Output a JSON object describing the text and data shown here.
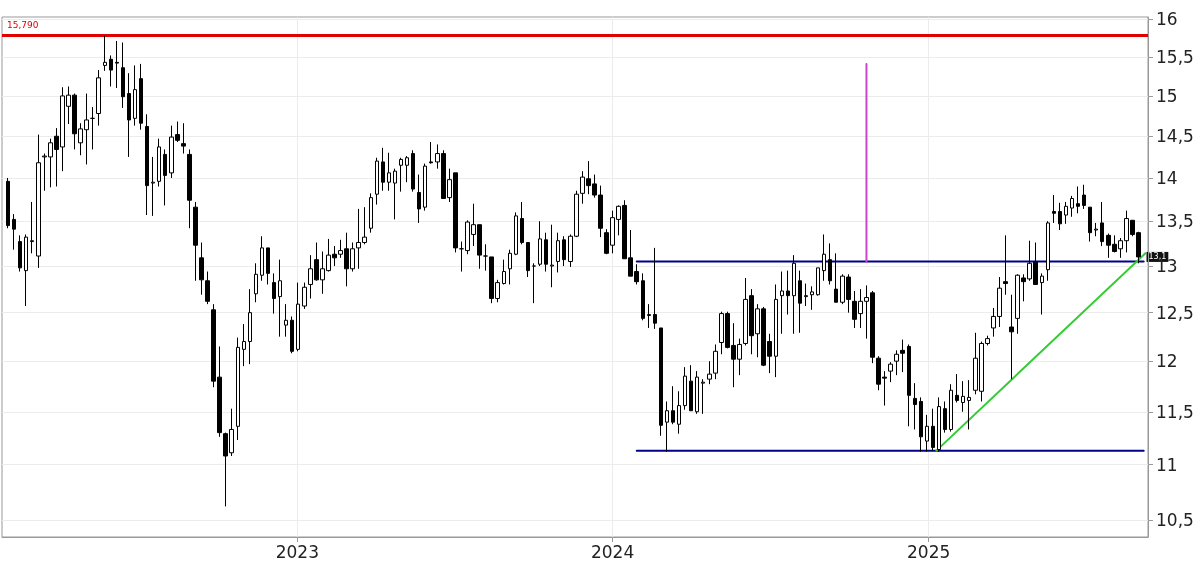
{
  "chart_data": {
    "type": "candlestick",
    "x": [
      "2022-01-31",
      "2022-02-07",
      "2022-02-14",
      "2022-02-21",
      "2022-02-28",
      "2022-03-07",
      "2022-03-14",
      "2022-03-21",
      "2022-03-28",
      "2022-04-04",
      "2022-04-11",
      "2022-04-18",
      "2022-04-25",
      "2022-05-02",
      "2022-05-09",
      "2022-05-16",
      "2022-05-23",
      "2022-05-30",
      "2022-06-06",
      "2022-06-13",
      "2022-06-20",
      "2022-06-27",
      "2022-07-04",
      "2022-07-11",
      "2022-07-18",
      "2022-07-25",
      "2022-08-01",
      "2022-08-08",
      "2022-08-15",
      "2022-08-22",
      "2022-08-29",
      "2022-09-05",
      "2022-09-12",
      "2022-09-19",
      "2022-09-26",
      "2022-10-03",
      "2022-10-10",
      "2022-10-17",
      "2022-10-24",
      "2022-10-31",
      "2022-11-07",
      "2022-11-14",
      "2022-11-21",
      "2022-11-28",
      "2022-12-05",
      "2022-12-12",
      "2022-12-19",
      "2022-12-26",
      "2023-01-02",
      "2023-01-09",
      "2023-01-16",
      "2023-01-23",
      "2023-01-30",
      "2023-02-06",
      "2023-02-13",
      "2023-02-20",
      "2023-02-27",
      "2023-03-06",
      "2023-03-13",
      "2023-03-20",
      "2023-03-27",
      "2023-04-03",
      "2023-04-10",
      "2023-04-17",
      "2023-04-24",
      "2023-05-01",
      "2023-05-08",
      "2023-05-15",
      "2023-05-22",
      "2023-05-29",
      "2023-06-05",
      "2023-06-12",
      "2023-06-19",
      "2023-06-26",
      "2023-07-03",
      "2023-07-10",
      "2023-07-17",
      "2023-07-24",
      "2023-07-31",
      "2023-08-07",
      "2023-08-14",
      "2023-08-21",
      "2023-08-28",
      "2023-09-04",
      "2023-09-11",
      "2023-09-18",
      "2023-09-25",
      "2023-10-02",
      "2023-10-09",
      "2023-10-16",
      "2023-10-23",
      "2023-10-30",
      "2023-11-06",
      "2023-11-13",
      "2023-11-20",
      "2023-11-27",
      "2023-12-04",
      "2023-12-11",
      "2023-12-18",
      "2023-12-25",
      "2024-01-01",
      "2024-01-08",
      "2024-01-15",
      "2024-01-22",
      "2024-01-29",
      "2024-02-05",
      "2024-02-12",
      "2024-02-19",
      "2024-02-26",
      "2024-03-04",
      "2024-03-11",
      "2024-03-18",
      "2024-03-25",
      "2024-04-01",
      "2024-04-08",
      "2024-04-15",
      "2024-04-22",
      "2024-04-29",
      "2024-05-06",
      "2024-05-13",
      "2024-05-20",
      "2024-05-27",
      "2024-06-03",
      "2024-06-10",
      "2024-06-17",
      "2024-06-24",
      "2024-07-01",
      "2024-07-08",
      "2024-07-15",
      "2024-07-22",
      "2024-07-29",
      "2024-08-05",
      "2024-08-12",
      "2024-08-19",
      "2024-08-26",
      "2024-09-02",
      "2024-09-09",
      "2024-09-16",
      "2024-09-23",
      "2024-09-30",
      "2024-10-07",
      "2024-10-14",
      "2024-10-21",
      "2024-10-28",
      "2024-11-04",
      "2024-11-11",
      "2024-11-18",
      "2024-11-25",
      "2024-12-02",
      "2024-12-09",
      "2024-12-16",
      "2024-12-23",
      "2024-12-30",
      "2025-01-06",
      "2025-01-13",
      "2025-01-20",
      "2025-01-27",
      "2025-02-03",
      "2025-02-10",
      "2025-02-17",
      "2025-02-24",
      "2025-03-03",
      "2025-03-10",
      "2025-03-17",
      "2025-03-24",
      "2025-03-31",
      "2025-04-07",
      "2025-04-14",
      "2025-04-21",
      "2025-04-28",
      "2025-05-05",
      "2025-05-12",
      "2025-05-19",
      "2025-05-26",
      "2025-06-02",
      "2025-06-09",
      "2025-06-16",
      "2025-06-23",
      "2025-06-30",
      "2025-07-07",
      "2025-07-14",
      "2025-07-21",
      "2025-07-28",
      "2025-08-04",
      "2025-08-11",
      "2025-08-18",
      "2025-08-25",
      "2025-09-01"
    ],
    "ohlc": [
      [
        13.96,
        14.0,
        13.42,
        13.45
      ],
      [
        13.52,
        13.58,
        13.18,
        13.41
      ],
      [
        13.27,
        13.34,
        12.94,
        12.98
      ],
      [
        12.95,
        13.35,
        12.57,
        13.32
      ],
      [
        13.27,
        13.72,
        13.14,
        13.28
      ],
      [
        13.11,
        14.52,
        12.98,
        14.18
      ],
      [
        14.25,
        14.29,
        13.85,
        14.26
      ],
      [
        14.25,
        14.47,
        13.89,
        14.42
      ],
      [
        14.5,
        14.6,
        13.9,
        14.34
      ],
      [
        14.37,
        15.11,
        14.08,
        15.0
      ],
      [
        14.87,
        15.12,
        14.65,
        15.01
      ],
      [
        15.01,
        15.03,
        14.34,
        14.53
      ],
      [
        14.42,
        14.66,
        14.27,
        14.59
      ],
      [
        14.58,
        15.03,
        14.16,
        14.7
      ],
      [
        14.72,
        14.86,
        14.34,
        14.72
      ],
      [
        14.78,
        15.33,
        14.63,
        15.23
      ],
      [
        15.39,
        15.78,
        15.32,
        15.43
      ],
      [
        15.47,
        15.52,
        15.12,
        15.33
      ],
      [
        15.43,
        15.71,
        15.1,
        15.42
      ],
      [
        15.36,
        15.69,
        14.85,
        14.99
      ],
      [
        15.03,
        15.29,
        14.25,
        14.7
      ],
      [
        14.72,
        15.39,
        14.63,
        15.08
      ],
      [
        15.22,
        15.41,
        14.58,
        14.66
      ],
      [
        14.62,
        14.77,
        13.57,
        13.91
      ],
      [
        13.94,
        14.25,
        13.56,
        13.95
      ],
      [
        13.96,
        14.47,
        13.9,
        14.37
      ],
      [
        14.28,
        14.34,
        13.68,
        14.03
      ],
      [
        14.06,
        14.63,
        14.0,
        14.49
      ],
      [
        14.52,
        14.68,
        14.43,
        14.45
      ],
      [
        14.41,
        14.66,
        14.29,
        14.38
      ],
      [
        14.28,
        14.34,
        13.42,
        13.74
      ],
      [
        13.66,
        13.72,
        12.84,
        13.23
      ],
      [
        13.09,
        13.26,
        12.69,
        12.85
      ],
      [
        12.84,
        12.94,
        12.59,
        12.62
      ],
      [
        12.53,
        12.59,
        11.74,
        11.8
      ],
      [
        11.84,
        12.15,
        11.26,
        11.3
      ],
      [
        11.29,
        11.3,
        10.62,
        11.08
      ],
      [
        11.11,
        11.53,
        11.08,
        11.33
      ],
      [
        11.36,
        12.24,
        11.23,
        12.14
      ],
      [
        12.12,
        12.38,
        11.95,
        12.2
      ],
      [
        12.2,
        12.75,
        11.97,
        12.5
      ],
      [
        12.7,
        13.03,
        12.61,
        12.91
      ],
      [
        12.9,
        13.33,
        12.84,
        13.2
      ],
      [
        13.2,
        13.2,
        12.8,
        12.92
      ],
      [
        12.82,
        12.92,
        12.49,
        12.65
      ],
      [
        12.67,
        13.07,
        12.25,
        12.84
      ],
      [
        12.37,
        12.59,
        12.25,
        12.42
      ],
      [
        12.42,
        12.46,
        12.08,
        12.1
      ],
      [
        12.12,
        12.82,
        12.1,
        12.59
      ],
      [
        12.57,
        12.82,
        12.54,
        12.77
      ],
      [
        12.8,
        13.12,
        12.65,
        12.97
      ],
      [
        13.07,
        13.26,
        12.84,
        12.85
      ],
      [
        12.85,
        13.16,
        12.7,
        12.97
      ],
      [
        12.95,
        13.3,
        12.94,
        13.12
      ],
      [
        13.13,
        13.22,
        13.0,
        13.09
      ],
      [
        13.13,
        13.29,
        13.09,
        13.17
      ],
      [
        13.19,
        13.37,
        12.78,
        12.97
      ],
      [
        12.97,
        13.26,
        12.94,
        13.19
      ],
      [
        13.2,
        13.64,
        12.97,
        13.26
      ],
      [
        13.26,
        13.66,
        13.24,
        13.32
      ],
      [
        13.42,
        13.82,
        13.37,
        13.77
      ],
      [
        13.81,
        14.24,
        13.69,
        14.2
      ],
      [
        14.19,
        14.36,
        13.85,
        13.95
      ],
      [
        13.95,
        14.3,
        13.85,
        14.06
      ],
      [
        13.94,
        14.11,
        13.52,
        14.08
      ],
      [
        14.15,
        14.24,
        13.84,
        14.22
      ],
      [
        14.15,
        14.26,
        13.95,
        14.24
      ],
      [
        14.29,
        14.33,
        13.84,
        13.87
      ],
      [
        13.83,
        14.04,
        13.48,
        13.64
      ],
      [
        13.66,
        14.17,
        13.62,
        14.14
      ],
      [
        14.19,
        14.43,
        14.17,
        14.18
      ],
      [
        14.19,
        14.4,
        14.11,
        14.29
      ],
      [
        14.29,
        14.33,
        13.76,
        13.76
      ],
      [
        13.77,
        14.11,
        13.72,
        13.98
      ],
      [
        14.06,
        14.06,
        13.15,
        13.2
      ],
      [
        13.19,
        13.27,
        12.94,
        13.19
      ],
      [
        13.17,
        13.51,
        13.13,
        13.49
      ],
      [
        13.35,
        13.7,
        13.22,
        13.46
      ],
      [
        13.46,
        13.46,
        12.97,
        13.12
      ],
      [
        13.11,
        13.24,
        12.95,
        13.11
      ],
      [
        13.1,
        13.1,
        12.6,
        12.65
      ],
      [
        12.65,
        12.85,
        12.61,
        12.82
      ],
      [
        12.81,
        13.07,
        12.8,
        12.94
      ],
      [
        12.97,
        13.18,
        12.8,
        13.14
      ],
      [
        13.13,
        13.6,
        13.12,
        13.56
      ],
      [
        13.53,
        13.72,
        13.24,
        13.26
      ],
      [
        13.26,
        13.26,
        12.88,
        12.95
      ],
      [
        13.0,
        13.03,
        12.6,
        13.0
      ],
      [
        13.02,
        13.5,
        13.0,
        13.3
      ],
      [
        13.29,
        13.37,
        12.94,
        13.02
      ],
      [
        13.0,
        13.46,
        12.77,
        13.01
      ],
      [
        13.05,
        13.37,
        12.93,
        13.28
      ],
      [
        13.29,
        13.33,
        13.0,
        13.07
      ],
      [
        13.05,
        13.35,
        12.99,
        13.33
      ],
      [
        13.33,
        13.85,
        13.32,
        13.81
      ],
      [
        13.82,
        14.08,
        13.7,
        14.01
      ],
      [
        13.99,
        14.2,
        13.81,
        13.91
      ],
      [
        13.93,
        14.04,
        13.77,
        13.8
      ],
      [
        13.8,
        13.91,
        13.32,
        13.42
      ],
      [
        13.37,
        13.41,
        13.13,
        13.14
      ],
      [
        13.23,
        13.62,
        13.14,
        13.54
      ],
      [
        13.52,
        13.68,
        13.34,
        13.67
      ],
      [
        13.68,
        13.74,
        13.08,
        13.08
      ],
      [
        13.09,
        13.4,
        12.89,
        12.89
      ],
      [
        12.94,
        13.02,
        12.8,
        12.83
      ],
      [
        12.84,
        12.92,
        12.42,
        12.44
      ],
      [
        12.47,
        12.59,
        12.34,
        12.48
      ],
      [
        12.48,
        13.2,
        12.33,
        12.39
      ],
      [
        12.34,
        12.34,
        11.27,
        11.37
      ],
      [
        11.4,
        11.6,
        11.12,
        11.51
      ],
      [
        11.51,
        11.75,
        11.38,
        11.4
      ],
      [
        11.38,
        11.7,
        11.29,
        11.56
      ],
      [
        11.56,
        11.94,
        11.52,
        11.85
      ],
      [
        11.8,
        11.96,
        11.51,
        11.51
      ],
      [
        11.5,
        11.9,
        11.48,
        11.84
      ],
      [
        11.78,
        11.82,
        11.48,
        11.79
      ],
      [
        11.82,
        12.0,
        11.77,
        11.87
      ],
      [
        11.88,
        12.17,
        11.82,
        12.1
      ],
      [
        12.19,
        12.51,
        12.07,
        12.49
      ],
      [
        12.49,
        12.51,
        12.13,
        12.14
      ],
      [
        12.16,
        12.39,
        11.74,
        12.02
      ],
      [
        12.02,
        12.23,
        11.86,
        12.17
      ],
      [
        12.18,
        12.87,
        12.16,
        12.64
      ],
      [
        12.68,
        12.75,
        12.07,
        12.26
      ],
      [
        12.28,
        12.59,
        12.04,
        12.54
      ],
      [
        12.54,
        12.56,
        11.95,
        11.96
      ],
      [
        12.2,
        12.28,
        11.88,
        12.05
      ],
      [
        12.05,
        12.8,
        11.84,
        12.64
      ],
      [
        12.68,
        12.94,
        12.28,
        12.73
      ],
      [
        12.73,
        12.95,
        12.48,
        12.68
      ],
      [
        12.68,
        13.12,
        12.28,
        13.03
      ],
      [
        12.84,
        12.95,
        12.29,
        12.6
      ],
      [
        12.67,
        12.81,
        12.57,
        12.68
      ],
      [
        12.69,
        12.78,
        12.53,
        12.72
      ],
      [
        12.69,
        12.98,
        12.68,
        12.98
      ],
      [
        12.95,
        13.35,
        12.84,
        13.13
      ],
      [
        13.07,
        13.25,
        12.8,
        12.84
      ],
      [
        12.75,
        13.14,
        12.61,
        12.61
      ],
      [
        12.61,
        12.91,
        12.59,
        12.89
      ],
      [
        12.88,
        12.91,
        12.5,
        12.64
      ],
      [
        12.62,
        12.73,
        12.34,
        12.43
      ],
      [
        12.49,
        12.75,
        12.34,
        12.62
      ],
      [
        12.62,
        12.79,
        12.23,
        12.66
      ],
      [
        12.71,
        12.73,
        11.98,
        12.04
      ],
      [
        12.03,
        12.05,
        11.71,
        11.77
      ],
      [
        11.84,
        11.9,
        11.56,
        11.83
      ],
      [
        11.9,
        11.99,
        11.79,
        11.97
      ],
      [
        12.0,
        12.11,
        11.86,
        12.07
      ],
      [
        12.11,
        12.22,
        11.89,
        12.08
      ],
      [
        12.15,
        12.17,
        11.36,
        11.66
      ],
      [
        11.63,
        11.78,
        11.33,
        11.57
      ],
      [
        11.6,
        11.64,
        11.12,
        11.26
      ],
      [
        11.22,
        11.47,
        11.12,
        11.36
      ],
      [
        11.36,
        11.53,
        11.13,
        11.16
      ],
      [
        11.14,
        11.64,
        11.12,
        11.55
      ],
      [
        11.53,
        11.6,
        11.3,
        11.33
      ],
      [
        11.33,
        11.77,
        11.31,
        11.71
      ],
      [
        11.66,
        11.87,
        11.59,
        11.61
      ],
      [
        11.59,
        11.8,
        11.5,
        11.65
      ],
      [
        11.61,
        11.81,
        11.33,
        11.64
      ],
      [
        11.71,
        12.29,
        11.67,
        12.03
      ],
      [
        11.7,
        12.2,
        11.6,
        12.18
      ],
      [
        12.18,
        12.26,
        12.16,
        12.23
      ],
      [
        12.34,
        12.55,
        12.25,
        12.46
      ],
      [
        12.46,
        12.88,
        12.35,
        12.76
      ],
      [
        12.83,
        13.34,
        12.69,
        12.81
      ],
      [
        12.35,
        12.69,
        11.82,
        12.3
      ],
      [
        12.44,
        12.91,
        12.28,
        12.9
      ],
      [
        12.87,
        12.91,
        12.62,
        12.83
      ],
      [
        12.86,
        13.28,
        12.84,
        13.03
      ],
      [
        13.05,
        13.26,
        12.8,
        12.8
      ],
      [
        12.82,
        12.92,
        12.48,
        12.89
      ],
      [
        12.96,
        13.5,
        12.84,
        13.48
      ],
      [
        13.61,
        13.8,
        13.48,
        13.59
      ],
      [
        13.61,
        13.71,
        13.4,
        13.47
      ],
      [
        13.57,
        13.72,
        13.47,
        13.67
      ],
      [
        13.65,
        13.79,
        13.55,
        13.76
      ],
      [
        13.7,
        13.9,
        13.59,
        13.67
      ],
      [
        13.8,
        13.92,
        13.64,
        13.68
      ],
      [
        13.66,
        13.66,
        13.27,
        13.37
      ],
      [
        13.4,
        13.48,
        13.33,
        13.41
      ],
      [
        13.48,
        13.72,
        13.22,
        13.27
      ],
      [
        13.34,
        13.36,
        13.09,
        13.23
      ],
      [
        13.24,
        13.34,
        13.15,
        13.16
      ],
      [
        13.19,
        13.31,
        13.09,
        13.28
      ],
      [
        13.28,
        13.62,
        13.15,
        13.53
      ],
      [
        13.51,
        13.51,
        13.33,
        13.35
      ],
      [
        13.37,
        13.38,
        13.03,
        13.1
      ]
    ],
    "series": [
      {
        "type": "line",
        "color": "#00008b",
        "x": [
          "2024-01-29",
          "2025-09-07"
        ],
        "values": [
          13.05,
          13.05
        ]
      },
      {
        "type": "line",
        "color": "#00008b",
        "x": [
          "2024-01-29",
          "2025-09-07"
        ],
        "values": [
          11.13,
          11.13
        ]
      },
      {
        "type": "line",
        "color": "#33cc33",
        "x": [
          "2025-01-10",
          "2025-09-09"
        ],
        "values": [
          11.13,
          13.14
        ]
      },
      {
        "type": "line",
        "color": "#cc44cc",
        "x": [
          "2024-10-21",
          "2024-10-21"
        ],
        "values": [
          13.05,
          15.41
        ]
      }
    ],
    "ref_lines": [
      {
        "axis": "y",
        "value": 15.79,
        "label": "15,790",
        "color": "#e00000"
      }
    ],
    "annotations": [
      {
        "text": "13,1",
        "x": "2025-09-01",
        "y": 13.1
      }
    ],
    "log": "y",
    "xlim": [
      "2022-01-24",
      "2025-09-12"
    ],
    "xticks": [
      "2023",
      "2024",
      "2025"
    ],
    "ylim": [
      10.35,
      16.03
    ],
    "yticks": [
      {
        "value": 10.5,
        "label": "10,5"
      },
      11,
      {
        "value": 11.5,
        "label": "11,5"
      },
      12,
      {
        "value": 12.5,
        "label": "12,5"
      },
      13,
      {
        "value": 13.5,
        "label": "13,5"
      },
      14,
      {
        "value": 14.5,
        "label": "14,5"
      },
      15,
      {
        "value": 15.5,
        "label": "15,5"
      },
      16
    ],
    "grid": true
  }
}
